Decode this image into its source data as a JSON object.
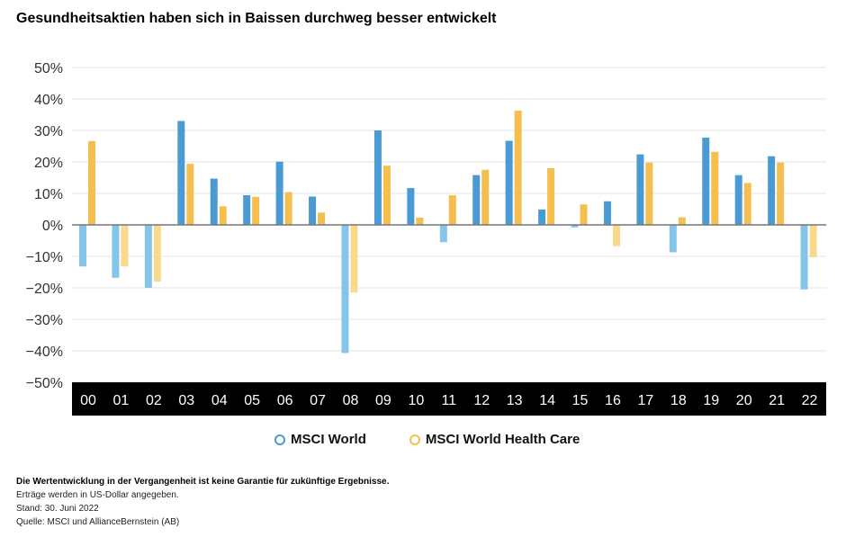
{
  "title": "Gesundheitsaktien haben sich in Baissen durchweg besser entwickelt",
  "chart_data": {
    "type": "bar",
    "title": "Gesundheitsaktien haben sich in Baissen durchweg besser entwickelt",
    "categories": [
      "00",
      "01",
      "02",
      "03",
      "04",
      "05",
      "06",
      "07",
      "08",
      "09",
      "10",
      "11",
      "12",
      "13",
      "14",
      "15",
      "16",
      "17",
      "18",
      "19",
      "20",
      "21",
      "22"
    ],
    "series": [
      {
        "name": "MSCI World",
        "color": "#4a9bd4",
        "negative_color": "#86c4e9",
        "values": [
          -13.2,
          -16.8,
          -20.0,
          33.0,
          14.7,
          9.4,
          20.1,
          9.0,
          -40.7,
          30.0,
          11.7,
          -5.5,
          15.8,
          26.7,
          4.9,
          -0.8,
          7.5,
          22.4,
          -8.7,
          27.7,
          15.8,
          21.8,
          -20.5
        ]
      },
      {
        "name": "MSCI World Health Care",
        "color": "#f4bf4f",
        "negative_color": "#f9d98b",
        "values": [
          26.6,
          -13.2,
          -18.0,
          19.4,
          5.9,
          8.9,
          10.4,
          3.9,
          -21.5,
          18.8,
          2.3,
          9.4,
          17.5,
          36.3,
          18.0,
          6.5,
          -6.8,
          19.8,
          2.4,
          23.2,
          13.3,
          19.8,
          -10.3
        ]
      }
    ],
    "ylim": [
      -50,
      50
    ],
    "yticks": [
      "50%",
      "40%",
      "30%",
      "20%",
      "10%",
      "0%",
      "−10%",
      "−20%",
      "−30%",
      "−40%",
      "−50%"
    ],
    "ytick_values": [
      50,
      40,
      30,
      20,
      10,
      0,
      -10,
      -20,
      -30,
      -40,
      -50
    ],
    "grid": true,
    "legend": "bottom",
    "xlabel": "",
    "ylabel": ""
  },
  "notes": {
    "disclaimer": "Die Wertentwicklung in der Vergangenheit ist keine Garantie für zukünftige Ergebnisse.",
    "currency": "Erträge werden in US-Dollar angegeben.",
    "date": "Stand: 30. Juni 2022",
    "source": "Quelle: MSCI und AllianceBernstein (AB)"
  }
}
